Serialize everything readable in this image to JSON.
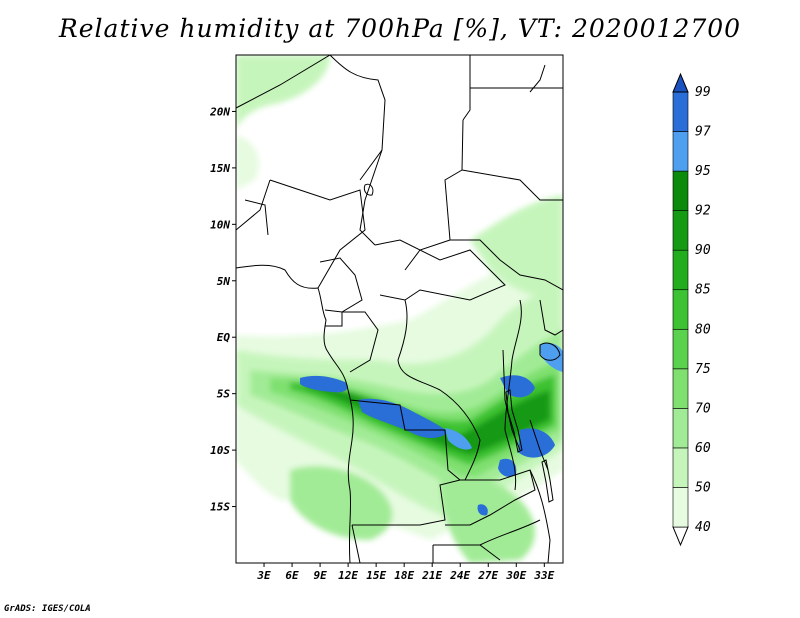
{
  "title": "Relative humidity at 700hPa [%], VT: 2020012700",
  "credit": "GrADS: IGES/COLA",
  "map": {
    "lon_range": [
      0,
      35
    ],
    "lat_range": [
      -20,
      25
    ],
    "lat_ticks": [
      "20N",
      "15N",
      "10N",
      "5N",
      "EQ",
      "5S",
      "10S",
      "15S"
    ],
    "lat_tick_values": [
      20,
      15,
      10,
      5,
      0,
      -5,
      -10,
      -15
    ],
    "lon_ticks": [
      "3E",
      "6E",
      "9E",
      "12E",
      "15E",
      "18E",
      "21E",
      "24E",
      "27E",
      "30E",
      "33E"
    ],
    "lon_tick_values": [
      3,
      6,
      9,
      12,
      15,
      18,
      21,
      24,
      27,
      30,
      33
    ]
  },
  "colorbar": {
    "levels": [
      "40",
      "50",
      "60",
      "70",
      "75",
      "80",
      "85",
      "90",
      "92",
      "95",
      "97",
      "99"
    ],
    "colors": [
      "#ffffff",
      "#e6fbe0",
      "#c6f5bc",
      "#a2eb96",
      "#7fe070",
      "#5bd24e",
      "#3cc232",
      "#22ad1e",
      "#159a14",
      "#0b8a0c",
      "#4f9ff0",
      "#2a6ed8",
      "#1a52c0"
    ]
  }
}
